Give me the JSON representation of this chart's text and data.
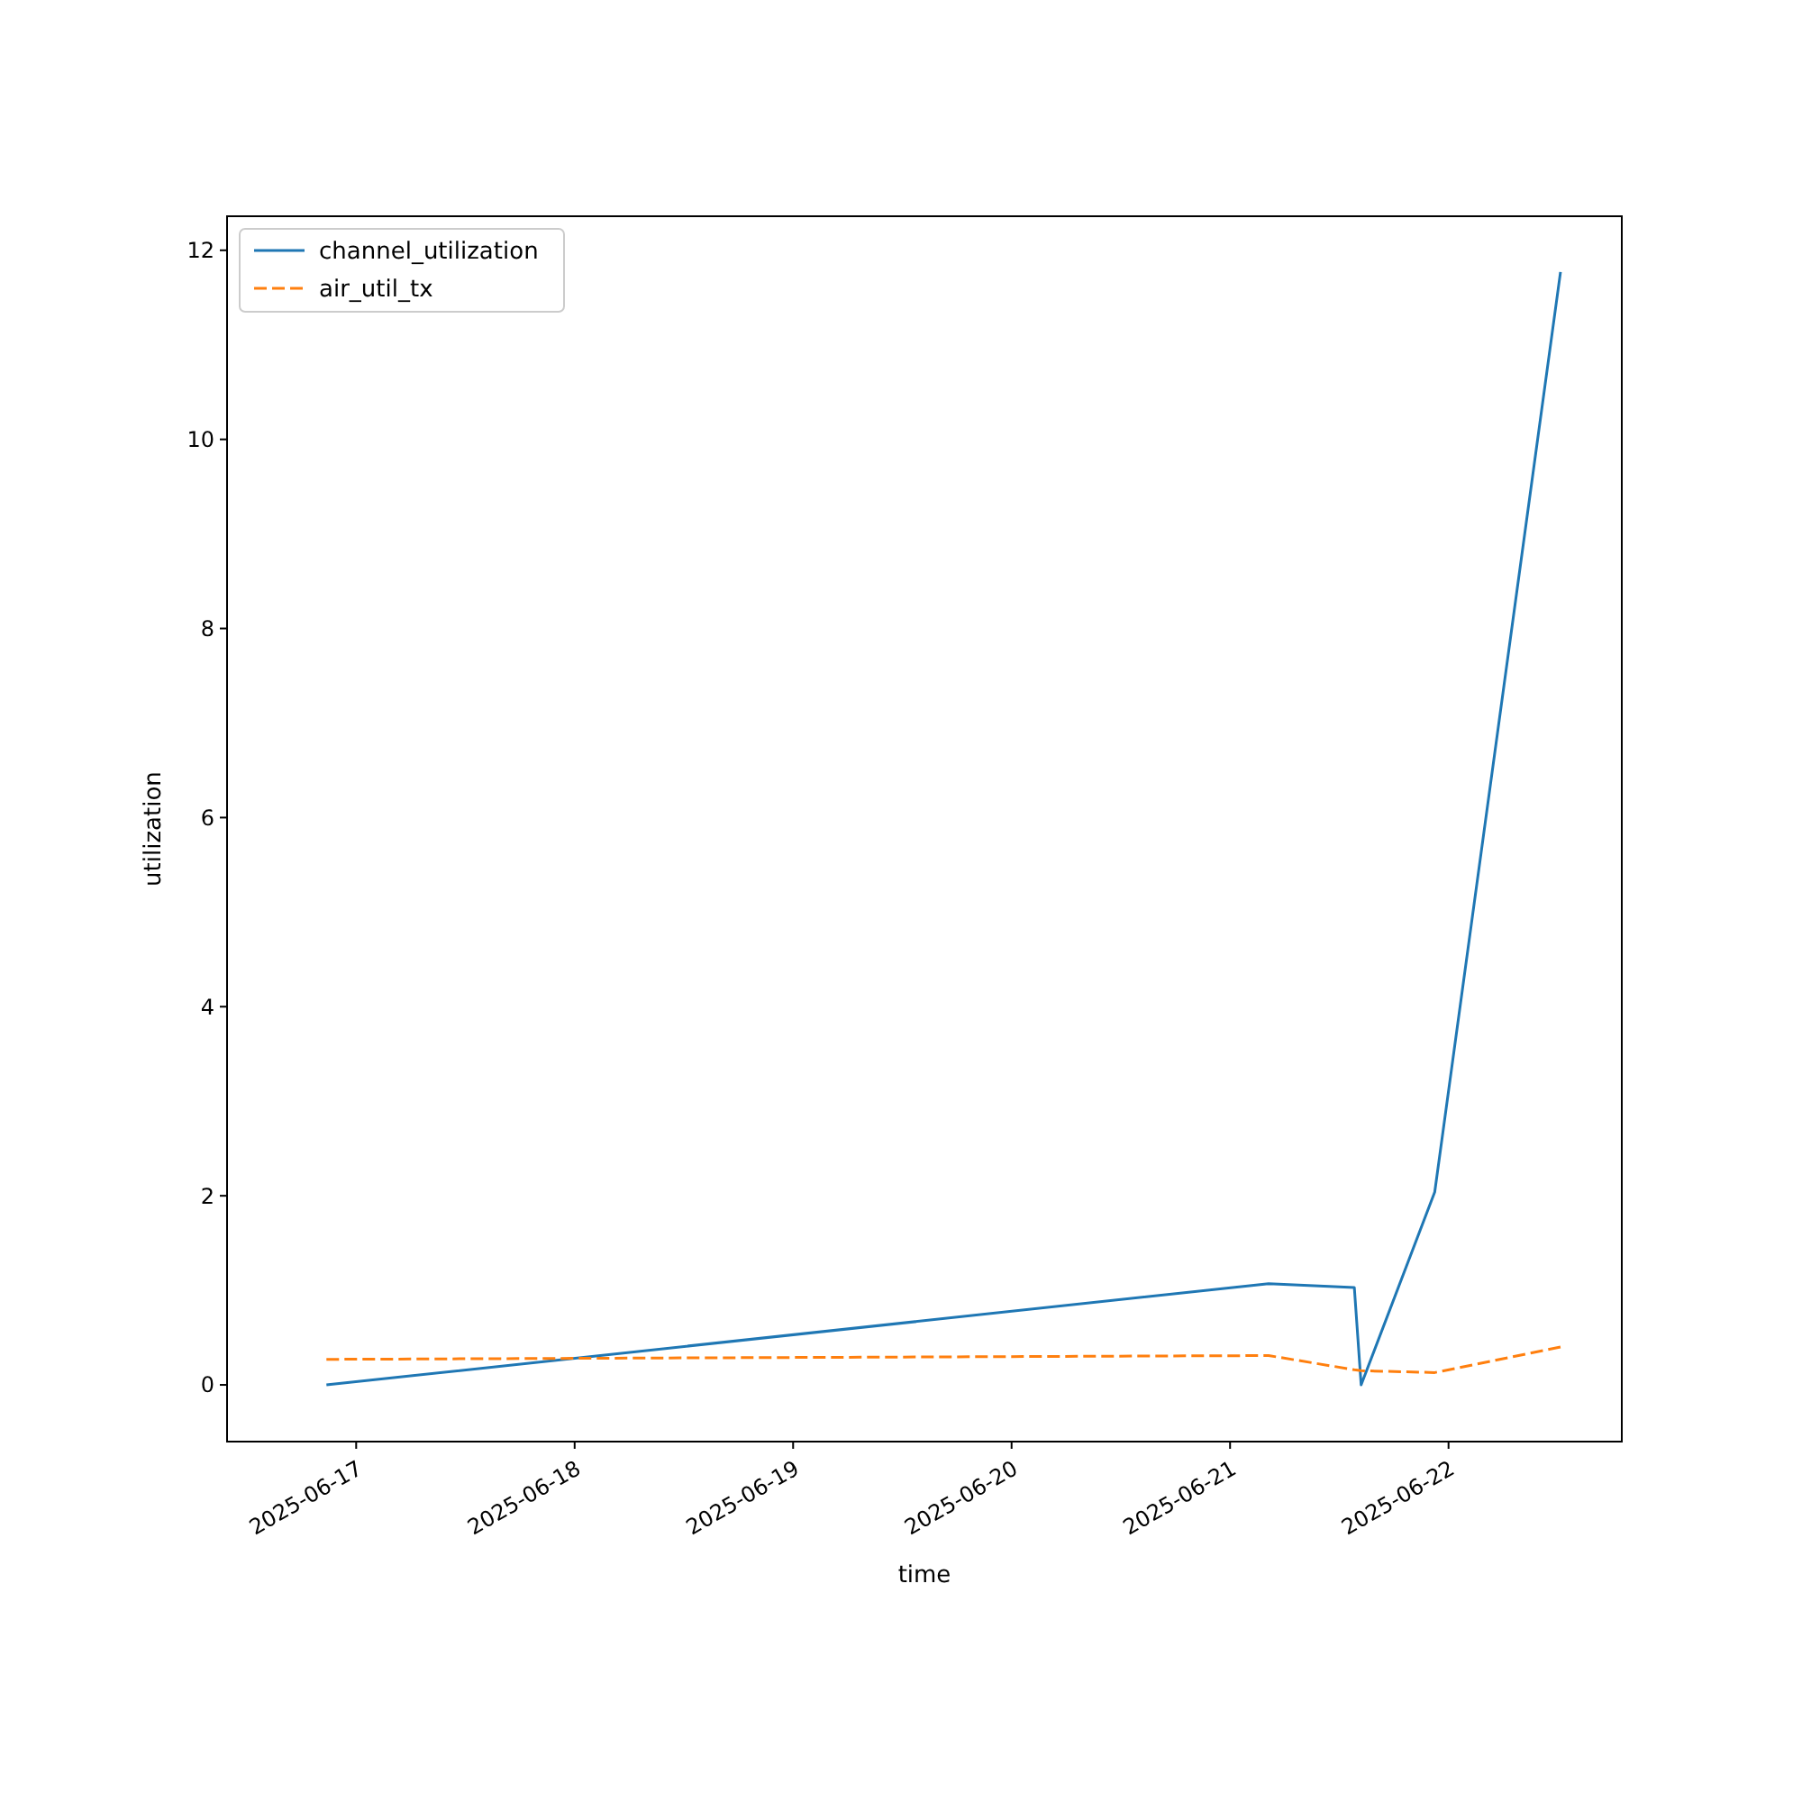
{
  "chart_data": {
    "type": "line",
    "xlabel": "time",
    "ylabel": "utilization",
    "x": [
      "2025-06-16T20:44",
      "2025-06-21T04:14",
      "2025-06-21T13:39",
      "2025-06-21T14:24",
      "2025-06-21T22:29",
      "2025-06-22T12:18"
    ],
    "series": [
      {
        "name": "channel_utilization",
        "color": "#1f77b4",
        "line_style": "solid",
        "values": [
          0,
          1.07,
          1.03,
          0,
          2.04,
          11.77
        ]
      },
      {
        "name": "air_util_tx",
        "color": "#ff7f0e",
        "line_style": "dashed",
        "values": [
          0.27,
          0.31,
          0.16,
          0.15,
          0.13,
          0.4
        ]
      }
    ],
    "xlim": [
      "2025-06-16T09:49",
      "2025-06-22T19:02"
    ],
    "xticks": [
      "2025-06-17",
      "2025-06-18",
      "2025-06-19",
      "2025-06-20",
      "2025-06-21",
      "2025-06-22"
    ],
    "ylim": [
      -0.6,
      12.36
    ],
    "yticks": [
      0,
      2,
      4,
      6,
      8,
      10,
      12
    ],
    "grid": false,
    "legend": "top left",
    "marker": "none"
  }
}
